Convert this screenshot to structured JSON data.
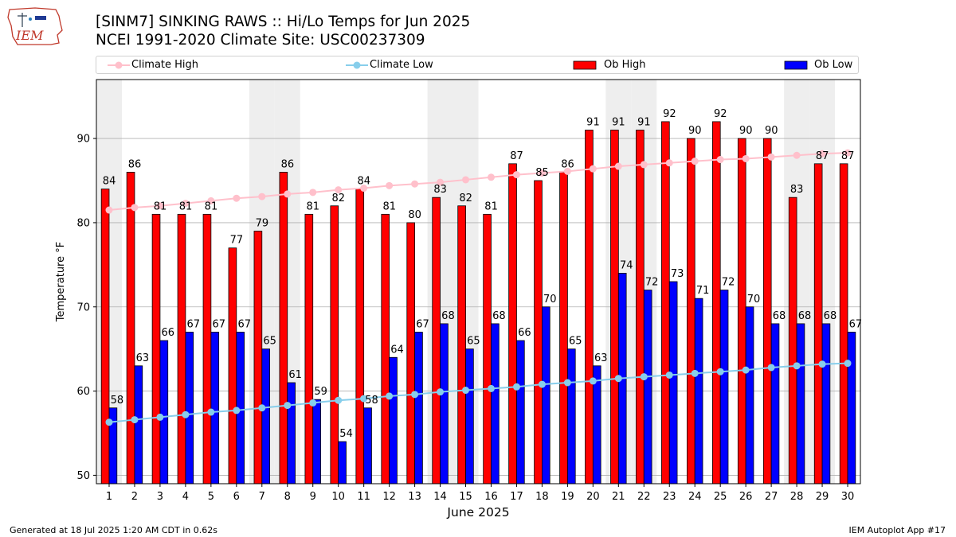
{
  "header": {
    "title_line1": "[SINM7] SINKING RAWS :: Hi/Lo Temps for Jun 2025",
    "title_line2": "NCEI 1991-2020 Climate Site: USC00237309",
    "logo_text": "IEM"
  },
  "legend": {
    "climate_high": "Climate High",
    "climate_low": "Climate Low",
    "ob_high": "Ob High",
    "ob_low": "Ob Low"
  },
  "footer": {
    "generated": "Generated at 18 Jul 2025 1:20 AM CDT in 0.62s",
    "app": "IEM Autoplot App #17"
  },
  "colors": {
    "ob_high": "#ff0000",
    "ob_low": "#0000ff",
    "climate_high": "#ffc0cb",
    "climate_low": "#87ceeb",
    "weekend_shade": "#eeeeee",
    "grid": "#b0b0b0"
  },
  "chart_data": {
    "type": "bar",
    "xlabel": "June 2025",
    "ylabel": "Temperature °F",
    "ylim": [
      49,
      97
    ],
    "yticks": [
      50,
      60,
      70,
      80,
      90
    ],
    "grid": "horizontal",
    "legend_position": "top",
    "categories": [
      1,
      2,
      3,
      4,
      5,
      6,
      7,
      8,
      9,
      10,
      11,
      12,
      13,
      14,
      15,
      16,
      17,
      18,
      19,
      20,
      21,
      22,
      23,
      24,
      25,
      26,
      27,
      28,
      29,
      30
    ],
    "shaded_days": [
      1,
      7,
      8,
      14,
      15,
      21,
      22,
      28,
      29
    ],
    "series": [
      {
        "name": "Ob High",
        "kind": "bar",
        "values": [
          84,
          86,
          81,
          81,
          81,
          77,
          79,
          86,
          81,
          82,
          84,
          81,
          80,
          83,
          82,
          81,
          87,
          85,
          86,
          91,
          91,
          91,
          92,
          90,
          92,
          90,
          90,
          83,
          87,
          87
        ]
      },
      {
        "name": "Ob Low",
        "kind": "bar",
        "values": [
          58,
          63,
          66,
          67,
          67,
          67,
          65,
          61,
          59,
          54,
          58,
          64,
          67,
          68,
          65,
          68,
          66,
          70,
          65,
          63,
          74,
          72,
          73,
          71,
          72,
          70,
          68,
          68,
          68,
          67
        ]
      },
      {
        "name": "Climate High",
        "kind": "line",
        "values": [
          81.5,
          81.8,
          82.0,
          82.3,
          82.6,
          82.9,
          83.1,
          83.4,
          83.6,
          83.9,
          84.1,
          84.4,
          84.6,
          84.8,
          85.1,
          85.4,
          85.7,
          85.9,
          86.1,
          86.4,
          86.7,
          86.9,
          87.1,
          87.3,
          87.5,
          87.6,
          87.8,
          88.0,
          88.2,
          88.3
        ]
      },
      {
        "name": "Climate Low",
        "kind": "line",
        "values": [
          56.3,
          56.6,
          56.9,
          57.2,
          57.5,
          57.7,
          58.0,
          58.3,
          58.6,
          58.9,
          59.1,
          59.4,
          59.6,
          59.9,
          60.1,
          60.3,
          60.5,
          60.8,
          61.0,
          61.2,
          61.5,
          61.7,
          61.9,
          62.1,
          62.3,
          62.5,
          62.8,
          63.0,
          63.2,
          63.3
        ]
      }
    ]
  }
}
